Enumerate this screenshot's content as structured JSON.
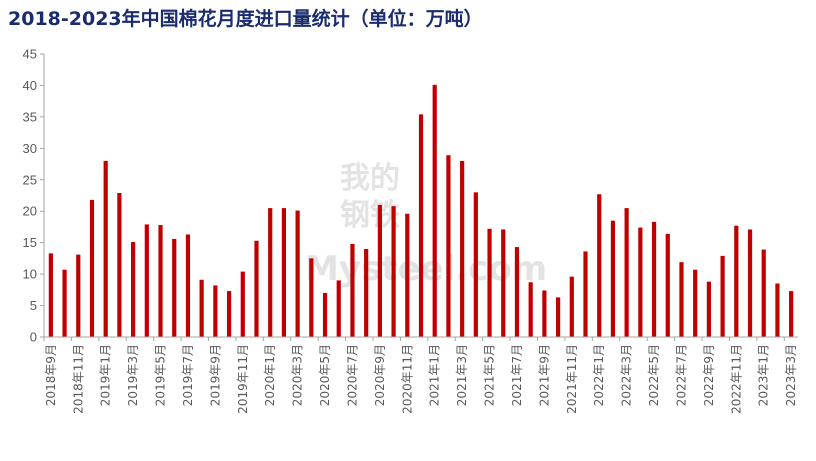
{
  "chart_data": {
    "type": "bar",
    "title": "2018-2023年中国棉花月度进口量统计（单位：万吨）",
    "xlabel": "",
    "ylabel": "",
    "ylim": [
      0,
      45
    ],
    "yticks": [
      0,
      5,
      10,
      15,
      20,
      25,
      30,
      35,
      40,
      45
    ],
    "grid": false,
    "legend": "none",
    "bar_color": "#c00000",
    "categories": [
      "2018年9月",
      "2018年10月",
      "2018年11月",
      "2018年12月",
      "2019年1月",
      "2019年2月",
      "2019年3月",
      "2019年4月",
      "2019年5月",
      "2019年6月",
      "2019年7月",
      "2019年8月",
      "2019年9月",
      "2019年10月",
      "2019年11月",
      "2019年12月",
      "2020年1月",
      "2020年2月",
      "2020年3月",
      "2020年4月",
      "2020年5月",
      "2020年6月",
      "2020年7月",
      "2020年8月",
      "2020年9月",
      "2020年10月",
      "2020年11月",
      "2020年12月",
      "2021年1月",
      "2021年2月",
      "2021年3月",
      "2021年4月",
      "2021年5月",
      "2021年6月",
      "2021年7月",
      "2021年8月",
      "2021年9月",
      "2021年10月",
      "2021年11月",
      "2021年12月",
      "2022年1月",
      "2022年2月",
      "2022年3月",
      "2022年4月",
      "2022年5月",
      "2022年6月",
      "2022年7月",
      "2022年8月",
      "2022年9月",
      "2022年10月",
      "2022年11月",
      "2022年12月",
      "2023年1月",
      "2023年2月",
      "2023年3月"
    ],
    "tick_labels": [
      "2018年9月",
      "2018年11月",
      "2019年1月",
      "2019年3月",
      "2019年5月",
      "2019年7月",
      "2019年9月",
      "2019年11月",
      "2020年1月",
      "2020年3月",
      "2020年5月",
      "2020年7月",
      "2020年9月",
      "2020年11月",
      "2021年1月",
      "2021年3月",
      "2021年5月",
      "2021年7月",
      "2021年9月",
      "2021年11月",
      "2022年1月",
      "2022年3月",
      "2022年5月",
      "2022年7月",
      "2022年9月",
      "2022年11月",
      "2023年1月",
      "2023年3月"
    ],
    "values": [
      13.3,
      10.7,
      13.1,
      21.8,
      28.0,
      22.9,
      15.1,
      17.9,
      17.8,
      15.6,
      16.3,
      9.1,
      8.2,
      7.3,
      10.4,
      15.3,
      20.5,
      20.5,
      20.1,
      12.5,
      7.0,
      9.0,
      14.8,
      14.0,
      21.0,
      20.8,
      19.6,
      35.4,
      40.1,
      28.9,
      28.0,
      23.0,
      17.2,
      17.1,
      14.3,
      8.7,
      7.4,
      6.3,
      9.6,
      13.6,
      22.7,
      18.5,
      20.5,
      17.4,
      18.3,
      16.4,
      11.9,
      10.7,
      8.8,
      12.9,
      17.7,
      17.1,
      13.9,
      8.5,
      7.3
    ]
  },
  "watermark": {
    "line1": "我的",
    "line2": "钢铁",
    "brand": "Mysteel.com"
  }
}
